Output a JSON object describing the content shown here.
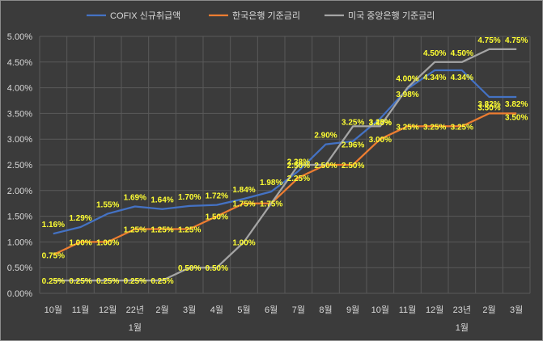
{
  "chart_data": {
    "type": "line",
    "categories": [
      "10월",
      "11월",
      "12월",
      "22년",
      "2월",
      "3월",
      "4월",
      "5월",
      "6월",
      "7월",
      "8월",
      "9월",
      "10월",
      "11월",
      "12월",
      "23년",
      "2월",
      "3월"
    ],
    "category_sublabels": [
      {
        "index": 3,
        "text": "1월"
      },
      {
        "index": 15,
        "text": "1월"
      }
    ],
    "ylim": [
      0,
      5
    ],
    "y_tick_labels": [
      "0.00%",
      "0.50%",
      "1.00%",
      "1.50%",
      "2.00%",
      "2.50%",
      "3.00%",
      "3.50%",
      "4.00%",
      "4.50%",
      "5.00%"
    ],
    "grid": true,
    "legend_position": "top",
    "series": [
      {
        "name": "COFIX 신규취급액",
        "color": "#4472c4",
        "values": [
          1.16,
          1.29,
          1.55,
          1.69,
          1.64,
          1.7,
          1.72,
          1.84,
          1.98,
          2.38,
          2.9,
          2.96,
          3.4,
          3.98,
          4.34,
          4.34,
          3.82,
          3.82
        ],
        "labels": [
          "1.16%",
          "1.29%",
          "1.55%",
          "1.69%",
          "1.64%",
          "1.70%",
          "1.72%",
          "1.84%",
          "1.98%",
          "2.38%",
          "2.90%",
          "2.96%",
          "3.40%",
          "3.98%",
          "4.34%",
          "4.34%",
          "3.82%",
          "3.82%"
        ]
      },
      {
        "name": "한국은행 기준금리",
        "color": "#ed7d31",
        "values": [
          0.75,
          1.0,
          1.0,
          1.25,
          1.25,
          1.25,
          1.5,
          1.75,
          1.75,
          2.25,
          2.5,
          2.5,
          3.0,
          3.25,
          3.25,
          3.25,
          3.5,
          3.5
        ],
        "labels": [
          "0.75%",
          "1.00%",
          "1.00%",
          "1.25%",
          "1.25%",
          "1.25%",
          "1.50%",
          "1.75%",
          "1.75%",
          "2.25%",
          "2.50%",
          "2.50%",
          "3.00%",
          "3.25%",
          "3.25%",
          "3.25%",
          "3.50%",
          "3.50%"
        ]
      },
      {
        "name": "미국 중앙은행 기준금리",
        "color": "#a5a5a5",
        "values": [
          0.25,
          0.25,
          0.25,
          0.25,
          0.25,
          0.5,
          0.5,
          1.0,
          1.75,
          2.5,
          2.5,
          3.25,
          3.25,
          4.0,
          4.5,
          4.5,
          4.75,
          4.75
        ],
        "labels": [
          "0.25%",
          "0.25%",
          "0.25%",
          "0.25%",
          "0.25%",
          "0.50%",
          "0.50%",
          "1.00%",
          "",
          "2.50%",
          "",
          "3.25%",
          "3.25%",
          "4.00%",
          "4.50%",
          "4.50%",
          "4.75%",
          "4.75%"
        ]
      }
    ]
  }
}
